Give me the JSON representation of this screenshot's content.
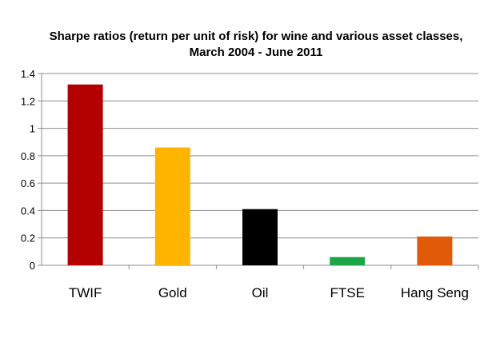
{
  "chart_data": {
    "type": "bar",
    "title": "Sharpe ratios (return per unit of risk) for wine and various asset classes, March 2004 - June 2011",
    "categories": [
      "TWIF",
      "Gold",
      "Oil",
      "FTSE",
      "Hang Seng"
    ],
    "values": [
      1.32,
      0.86,
      0.41,
      0.06,
      0.21
    ],
    "bar_colors": [
      "#b30000",
      "#ffb400",
      "#000000",
      "#1ea54a",
      "#e05a0a"
    ],
    "y_ticks": [
      "0",
      "0.2",
      "0.4",
      "0.6",
      "0.8",
      "1",
      "1.2",
      "1.4"
    ],
    "ylim": [
      0,
      1.4
    ],
    "grid": true,
    "legend": "none",
    "xlabel": "",
    "ylabel": ""
  }
}
